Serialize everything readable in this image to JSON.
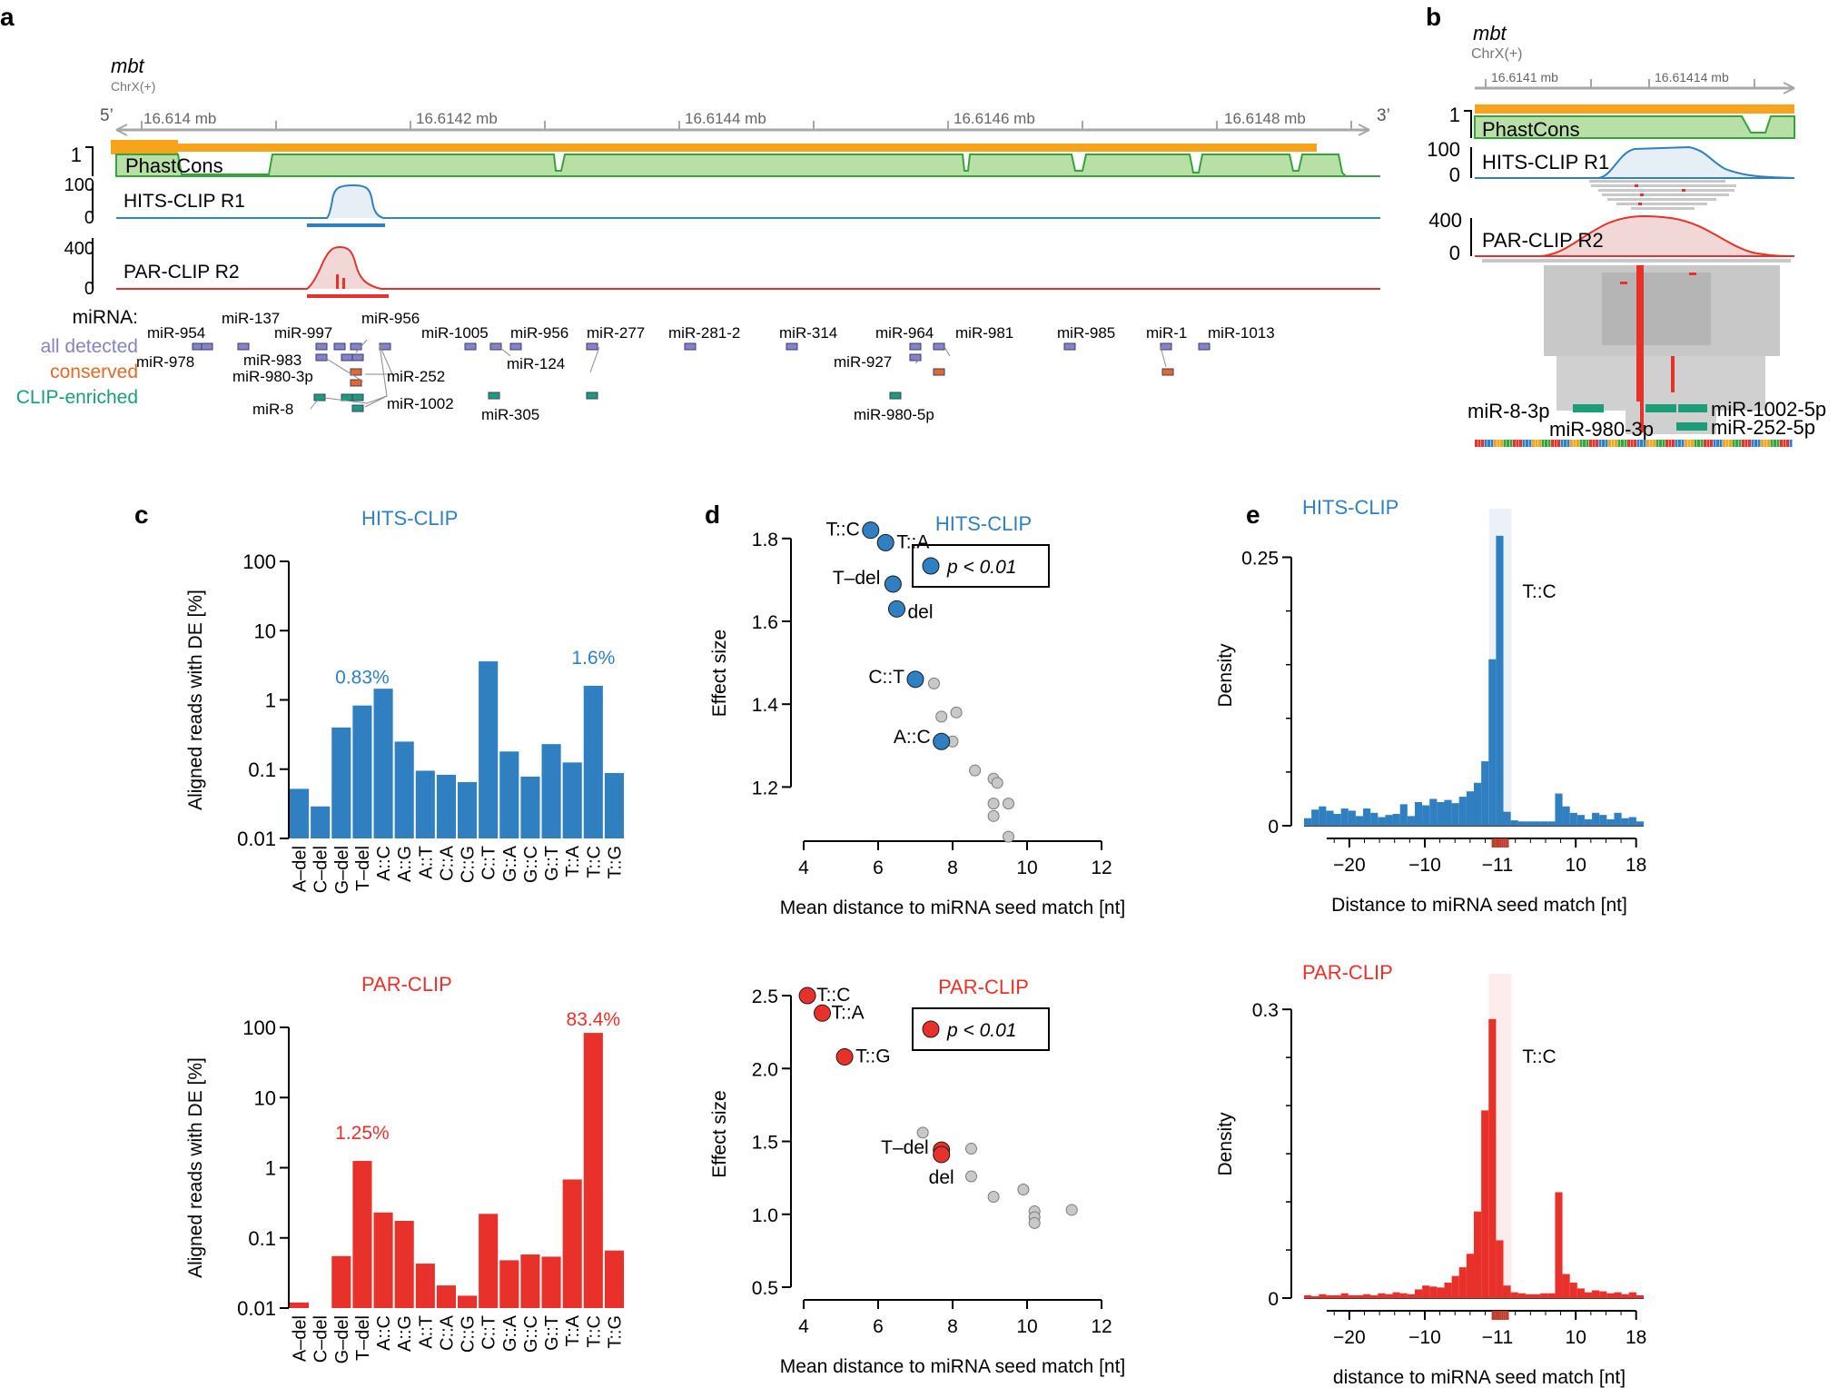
{
  "colors": {
    "blue": "#2f7fc1",
    "red": "#e8312a",
    "orange": "#f7a41d",
    "green_fill": "#b7dfa6",
    "green_line": "#36a33c",
    "purple": "#8583c3",
    "mir_orange": "#e06a28",
    "teal": "#1b9e77",
    "gray": "#c8c8c8",
    "axis_gray": "#a7a7a7",
    "grid_gray": "#9a9a9a"
  },
  "panel_a": {
    "letter": "a",
    "gene": "mbt",
    "chrom": "ChrX(+)",
    "five_prime": "5’",
    "three_prime": "3’",
    "ticks": [
      "16.614 mb",
      "16.6142 mb",
      "16.6144 mb",
      "16.6146 mb",
      "16.6148 mb"
    ],
    "phastcons_label": "PhastCons",
    "phastcons_max": "1",
    "hits_label": "HITS-CLIP R1",
    "hits_max": "100",
    "hits_min": "0",
    "par_label": "PAR-CLIP R2",
    "par_max": "400",
    "par_min": "0",
    "mirna_header": "miRNA:",
    "legend_all": "all detected",
    "legend_conserved": "conserved",
    "legend_enriched": "CLIP-enriched",
    "mirna_labels": [
      "miR-954",
      "miR-137",
      "miR-978",
      "miR-997",
      "miR-956",
      "miR-983",
      "miR-980-3p",
      "miR-252",
      "miR-8",
      "miR-1002",
      "miR-1005",
      "miR-956",
      "miR-124",
      "miR-305",
      "miR-277",
      "miR-281-2",
      "miR-314",
      "miR-964",
      "miR-981",
      "miR-927",
      "miR-980-5p",
      "miR-985",
      "miR-1",
      "miR-1013"
    ]
  },
  "panel_b": {
    "letter": "b",
    "gene": "mbt",
    "chrom": "ChrX(+)",
    "ticks": [
      "16.6141 mb",
      "16.61414 mb"
    ],
    "phastcons_label": "PhastCons",
    "phastcons_max": "1",
    "hits_label": "HITS-CLIP R1",
    "hits_max": "100",
    "hits_min": "0",
    "par_label": "PAR-CLIP R2",
    "par_max": "400",
    "par_min": "0",
    "mirna_labels": [
      "miR-8-3p",
      "miR-980-3p",
      "miR-1002-5p",
      "miR-252-5p"
    ]
  },
  "chart_data": [
    {
      "panel": "c",
      "letter": "c",
      "type": "bar",
      "title": "HITS-CLIP",
      "ylabel": "Aligned reads with DE [%]",
      "xlabel": "",
      "yscale": "log",
      "ylim": [
        0.01,
        100
      ],
      "yticks": [
        "0.01",
        "0.1",
        "1",
        "10",
        "100"
      ],
      "categories": [
        "A–del",
        "C–del",
        "G–del",
        "T–del",
        "A::C",
        "A::G",
        "A::T",
        "C::A",
        "C::G",
        "C::T",
        "G::A",
        "G::C",
        "G::T",
        "T::A",
        "T::C",
        "T::G"
      ],
      "values": [
        0.052,
        0.029,
        0.4,
        0.83,
        1.45,
        0.25,
        0.095,
        0.083,
        0.065,
        3.6,
        0.18,
        0.078,
        0.23,
        0.125,
        1.6,
        0.088
      ],
      "annotations": [
        "0.83%",
        "1.6%"
      ]
    },
    {
      "panel": "c2",
      "type": "bar",
      "title": "PAR-CLIP",
      "ylabel": "Aligned reads with DE [%]",
      "xlabel": "",
      "yscale": "log",
      "ylim": [
        0.01,
        100
      ],
      "yticks": [
        "0.01",
        "0.1",
        "1",
        "10",
        "100"
      ],
      "categories": [
        "A–del",
        "C–del",
        "G–del",
        "T–del",
        "A::C",
        "A::G",
        "A::T",
        "C::A",
        "C::G",
        "C::T",
        "G::A",
        "G::C",
        "G::T",
        "T::A",
        "T::C",
        "T::G"
      ],
      "values": [
        0.012,
        0.0,
        0.055,
        1.25,
        0.23,
        0.175,
        0.043,
        0.021,
        0.015,
        0.22,
        0.048,
        0.058,
        0.054,
        0.68,
        83.4,
        0.066
      ],
      "annotations": [
        "1.25%",
        "83.4%"
      ]
    },
    {
      "panel": "d",
      "letter": "d",
      "type": "scatter",
      "title": "HITS-CLIP",
      "legend": "p < 0.01",
      "xlabel": "Mean distance to miRNA seed match [nt]",
      "ylabel": "Effect size",
      "xlim": [
        4,
        12
      ],
      "ylim": [
        1.1,
        1.85
      ],
      "xticks": [
        "4",
        "6",
        "8",
        "10",
        "12"
      ],
      "yticks": [
        "1.2",
        "1.4",
        "1.6",
        "1.8"
      ],
      "significant": [
        {
          "x": 5.8,
          "y": 1.82,
          "label": "T::C"
        },
        {
          "x": 6.2,
          "y": 1.79,
          "label": "T::A"
        },
        {
          "x": 6.4,
          "y": 1.69,
          "label": "T–del"
        },
        {
          "x": 6.5,
          "y": 1.63,
          "label": "del"
        },
        {
          "x": 7.0,
          "y": 1.46,
          "label": "C::T"
        },
        {
          "x": 7.7,
          "y": 1.31,
          "label": "A::C"
        }
      ],
      "other": [
        {
          "x": 7.5,
          "y": 1.45
        },
        {
          "x": 7.7,
          "y": 1.37
        },
        {
          "x": 8.1,
          "y": 1.38
        },
        {
          "x": 8.0,
          "y": 1.31
        },
        {
          "x": 8.6,
          "y": 1.24
        },
        {
          "x": 9.1,
          "y": 1.22
        },
        {
          "x": 9.2,
          "y": 1.21
        },
        {
          "x": 9.1,
          "y": 1.16
        },
        {
          "x": 9.5,
          "y": 1.16
        },
        {
          "x": 9.1,
          "y": 1.13
        },
        {
          "x": 9.5,
          "y": 1.08
        }
      ]
    },
    {
      "panel": "d2",
      "type": "scatter",
      "title": "PAR-CLIP",
      "legend": "p < 0.01",
      "xlabel": "Mean distance to miRNA seed match [nt]",
      "ylabel": "Effect size",
      "xlim": [
        4,
        12
      ],
      "ylim": [
        0.5,
        2.6
      ],
      "xticks": [
        "4",
        "6",
        "8",
        "10",
        "12"
      ],
      "yticks": [
        "0.5",
        "1.0",
        "1.5",
        "2.0",
        "2.5"
      ],
      "significant": [
        {
          "x": 4.1,
          "y": 2.5,
          "label": "T::C"
        },
        {
          "x": 4.5,
          "y": 2.38,
          "label": "T::A"
        },
        {
          "x": 5.1,
          "y": 2.08,
          "label": "T::G"
        },
        {
          "x": 7.7,
          "y": 1.44,
          "label": "T–del"
        },
        {
          "x": 7.7,
          "y": 1.41,
          "label": "del"
        }
      ],
      "other": [
        {
          "x": 7.2,
          "y": 1.56
        },
        {
          "x": 8.5,
          "y": 1.45
        },
        {
          "x": 8.5,
          "y": 1.26
        },
        {
          "x": 9.9,
          "y": 1.17
        },
        {
          "x": 9.1,
          "y": 1.12
        },
        {
          "x": 10.2,
          "y": 1.02
        },
        {
          "x": 10.2,
          "y": 0.98
        },
        {
          "x": 10.2,
          "y": 0.94
        },
        {
          "x": 11.2,
          "y": 1.03
        }
      ]
    },
    {
      "panel": "e",
      "letter": "e",
      "type": "bar",
      "subtype": "histogram",
      "title": "HITS-CLIP",
      "annotation": "T::C",
      "xlabel": "Distance to miRNA seed match [nt]",
      "ylabel": "Density",
      "xlim": [
        -26,
        19
      ],
      "ylim": [
        0,
        0.28
      ],
      "xticks": [
        "−20",
        "−10",
        "−1",
        "1",
        "10",
        "18"
      ],
      "yticks": [
        "0",
        "0.25"
      ],
      "highlight_range": [
        -1,
        1
      ],
      "values": [
        0.007,
        0.015,
        0.018,
        0.014,
        0.011,
        0.016,
        0.014,
        0.009,
        0.016,
        0.012,
        0.008,
        0.01,
        0.011,
        0.02,
        0.009,
        0.022,
        0.019,
        0.025,
        0.022,
        0.024,
        0.021,
        0.027,
        0.032,
        0.04,
        0.06,
        0.155,
        0.27,
        0.013,
        0.005,
        0.004,
        0.004,
        0.004,
        0.004,
        0.004,
        0.03,
        0.018,
        0.012,
        0.01,
        0.006,
        0.012,
        0.01,
        0.006,
        0.012,
        0.007,
        0.008,
        0.004
      ]
    },
    {
      "panel": "e2",
      "type": "bar",
      "subtype": "histogram",
      "title": "PAR-CLIP",
      "annotation": "T::C",
      "xlabel": "distance to miRNA seed match [nt]",
      "ylabel": "Density",
      "xlim": [
        -26,
        19
      ],
      "ylim": [
        0,
        0.32
      ],
      "xticks": [
        "−20",
        "−10",
        "−1",
        "1",
        "10",
        "18"
      ],
      "yticks": [
        "0",
        "0.3"
      ],
      "highlight_range": [
        -1,
        1
      ],
      "values": [
        0.003,
        0.002,
        0.004,
        0.003,
        0.003,
        0.005,
        0.003,
        0.003,
        0.004,
        0.003,
        0.005,
        0.004,
        0.006,
        0.005,
        0.004,
        0.009,
        0.013,
        0.012,
        0.011,
        0.016,
        0.023,
        0.032,
        0.046,
        0.09,
        0.195,
        0.29,
        0.06,
        0.013,
        0.006,
        0.005,
        0.004,
        0.004,
        0.005,
        0.005,
        0.11,
        0.025,
        0.016,
        0.01,
        0.006,
        0.008,
        0.007,
        0.005,
        0.006,
        0.004,
        0.006,
        0.003
      ]
    }
  ]
}
